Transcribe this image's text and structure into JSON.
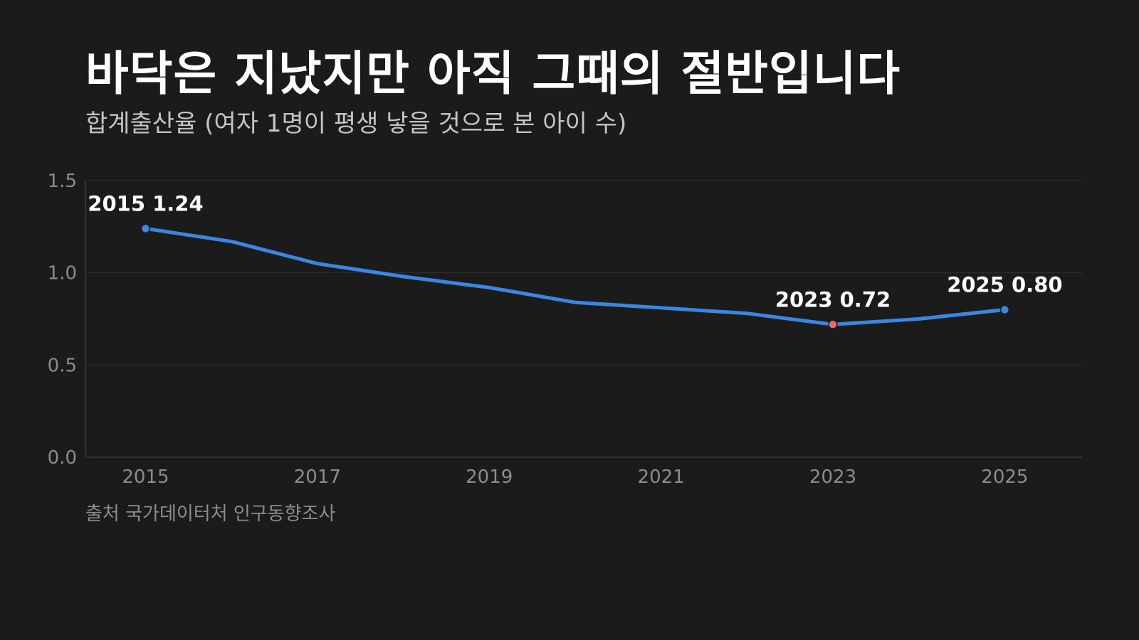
{
  "title": "바닥은 지났지만 아직 그때의 절반입니다",
  "subtitle": "합계출산율 (여자 1명이 평생 낳을 것으로 본 아이 수)",
  "source": "출처 국가데이터처 인구동향조사",
  "colors": {
    "background": "#1b1b1b",
    "line": "#3a86e0",
    "highlight": "#e46c6c",
    "grid": "#2e2e2e",
    "axis": "#3a3a3a",
    "tick_text": "#8c8c8c"
  },
  "chart_data": {
    "type": "line",
    "x": [
      2015,
      2016,
      2017,
      2018,
      2019,
      2020,
      2021,
      2022,
      2023,
      2024,
      2025
    ],
    "xticks": [
      "2015",
      "2017",
      "2019",
      "2021",
      "2023",
      "2025"
    ],
    "yticks": [
      "0.0",
      "0.5",
      "1.0",
      "1.5"
    ],
    "ylim": [
      0,
      1.5
    ],
    "xlim": [
      2014.3,
      2025.9
    ],
    "series": [
      {
        "values": [
          1.24,
          1.17,
          1.05,
          0.98,
          0.92,
          0.84,
          0.81,
          0.78,
          0.72,
          0.75,
          0.8
        ]
      }
    ],
    "grid": "horizontal",
    "annotations": [
      {
        "x": 2015,
        "y": 1.24,
        "text": "2015 1.24",
        "color": "#3a86e0"
      },
      {
        "x": 2023,
        "y": 0.72,
        "text": "2023 0.72",
        "color": "#e46c6c"
      },
      {
        "x": 2025,
        "y": 0.8,
        "text": "2025 0.80",
        "color": "#3a86e0"
      }
    ]
  }
}
